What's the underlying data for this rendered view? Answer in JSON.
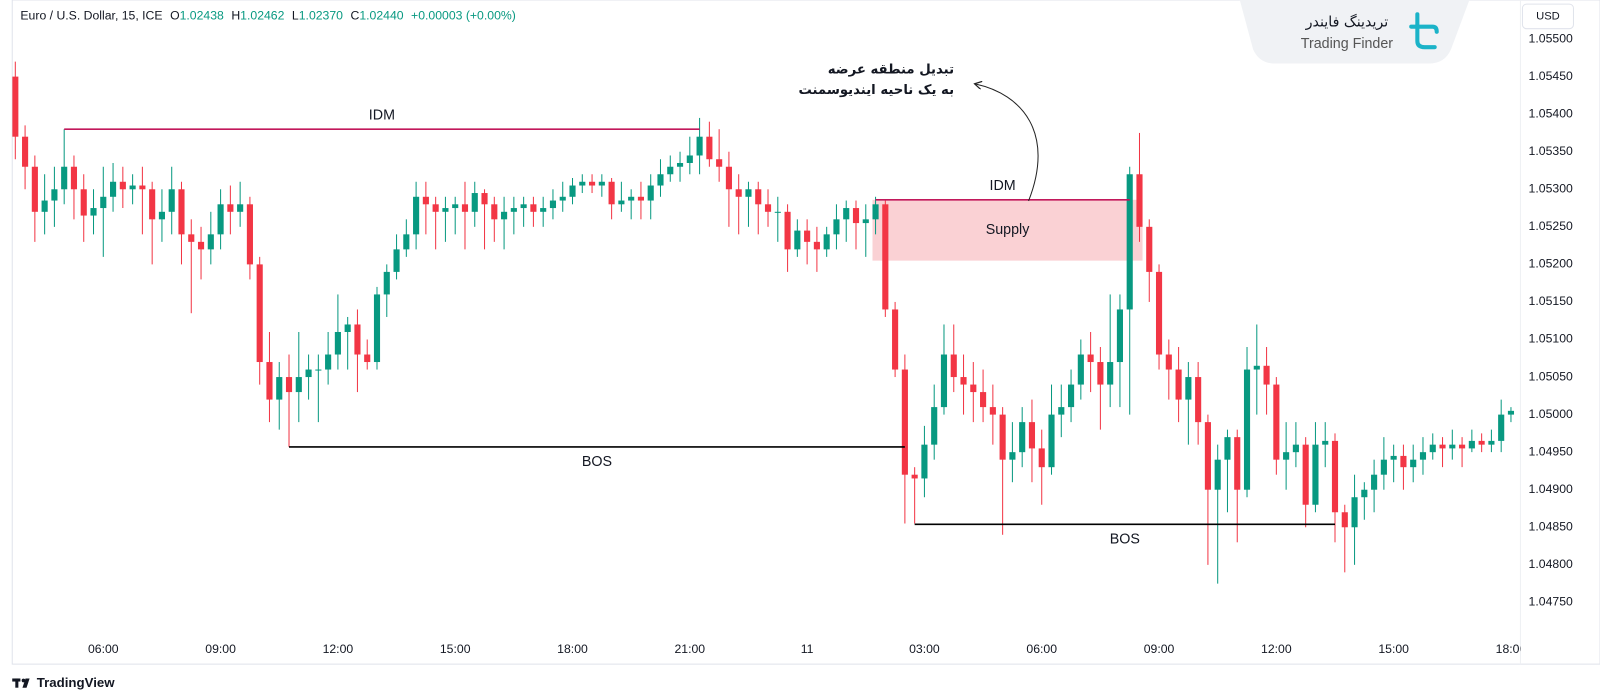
{
  "header": {
    "symbol": "Euro / U.S. Dollar, 15, ICE",
    "ohlc": [
      {
        "label": "O",
        "value": "1.02438"
      },
      {
        "label": "H",
        "value": "1.02462"
      },
      {
        "label": "L",
        "value": "1.02370"
      },
      {
        "label": "C",
        "value": "1.02440"
      }
    ],
    "change": "+0.00003 (+0.00%)",
    "currency": "USD"
  },
  "brand": {
    "name_fa": "تریدینگ فایندر",
    "name_en": "Trading Finder",
    "platform": "TradingView"
  },
  "chart_data": {
    "type": "candlestick",
    "categories": [
      null,
      null,
      null,
      null,
      null,
      null,
      null,
      null,
      null,
      "06:00",
      null,
      null,
      null,
      null,
      null,
      null,
      null,
      null,
      null,
      null,
      null,
      "09:00",
      null,
      null,
      null,
      null,
      null,
      null,
      null,
      null,
      null,
      null,
      null,
      "12:00",
      null,
      null,
      null,
      null,
      null,
      null,
      null,
      null,
      null,
      null,
      null,
      "15:00",
      null,
      null,
      null,
      null,
      null,
      null,
      null,
      null,
      null,
      null,
      null,
      "18:00",
      null,
      null,
      null,
      null,
      null,
      null,
      null,
      null,
      null,
      null,
      null,
      "21:00",
      null,
      null,
      null,
      null,
      null,
      null,
      null,
      null,
      null,
      null,
      null,
      "11",
      null,
      null,
      null,
      null,
      null,
      null,
      null,
      null,
      null,
      null,
      null,
      "03:00",
      null,
      null,
      null,
      null,
      null,
      null,
      null,
      null,
      null,
      null,
      null,
      "06:00",
      null,
      null,
      null,
      null,
      null,
      null,
      null,
      null,
      null,
      null,
      null,
      "09:00",
      null,
      null,
      null,
      null,
      null,
      null,
      null,
      null,
      null,
      null,
      null,
      "12:00",
      null,
      null,
      null,
      null,
      null,
      null,
      null,
      null,
      null,
      null,
      null,
      "15:00",
      null,
      null,
      null,
      null,
      null,
      null,
      null,
      null,
      null,
      null,
      null,
      "18:00"
    ],
    "open": [
      1.0545,
      1.0537,
      1.0533,
      1.0527,
      1.05285,
      1.053,
      1.0533,
      1.053,
      1.05265,
      1.05275,
      1.0529,
      1.0531,
      1.053,
      1.05305,
      1.053,
      1.0526,
      1.0527,
      1.053,
      1.0524,
      1.0523,
      1.0522,
      1.0524,
      1.0528,
      1.0527,
      1.0528,
      1.052,
      1.0507,
      1.0502,
      1.0505,
      1.0503,
      1.0505,
      1.0506,
      1.0506,
      1.0508,
      1.0511,
      1.0512,
      1.0508,
      1.0507,
      1.0516,
      1.0519,
      1.0522,
      1.0524,
      1.0529,
      1.0528,
      1.0527,
      1.05275,
      1.0528,
      1.0527,
      1.05295,
      1.0528,
      1.0526,
      1.0527,
      1.05275,
      1.0528,
      1.0527,
      1.05275,
      1.05285,
      1.0529,
      1.05305,
      1.0531,
      1.05305,
      1.0531,
      1.0528,
      1.05285,
      1.0529,
      1.05285,
      1.05305,
      1.0532,
      1.0533,
      1.05335,
      1.05345,
      1.0537,
      1.0534,
      1.0533,
      1.053,
      1.0529,
      1.053,
      1.0528,
      1.0527,
      1.0527,
      1.0522,
      1.05245,
      1.0523,
      1.0522,
      1.0524,
      1.0526,
      1.05275,
      1.05255,
      1.0526,
      1.0528,
      1.0514,
      1.0506,
      1.0492,
      1.04915,
      1.0496,
      1.0501,
      1.0508,
      1.0505,
      1.0504,
      1.0503,
      1.0501,
      1.05,
      1.0494,
      1.0495,
      1.0499,
      1.04955,
      1.0493,
      1.05,
      1.0501,
      1.0504,
      1.0508,
      1.0507,
      1.0504,
      1.0507,
      1.0514,
      1.0532,
      1.0525,
      1.0519,
      1.0508,
      1.0506,
      1.0502,
      1.0505,
      1.0499,
      1.049,
      1.0494,
      1.0497,
      1.049,
      1.0506,
      1.05065,
      1.0504,
      1.0494,
      1.0495,
      1.0496,
      1.0488,
      1.0496,
      1.04965,
      1.0487,
      1.0485,
      1.0489,
      1.049,
      1.0492,
      1.0494,
      1.04945,
      1.0493,
      1.0494,
      1.0495,
      1.0496,
      1.04955,
      1.0496,
      1.04955,
      1.04965,
      1.0496,
      1.04965,
      1.05
    ],
    "high": [
      1.0547,
      1.05385,
      1.05345,
      1.0532,
      1.0533,
      1.0538,
      1.05345,
      1.0532,
      1.053,
      1.0533,
      1.05335,
      1.0533,
      1.0532,
      1.0533,
      1.0531,
      1.053,
      1.0533,
      1.0531,
      1.0526,
      1.0525,
      1.0527,
      1.053,
      1.05305,
      1.0531,
      1.0529,
      1.0521,
      1.0511,
      1.0507,
      1.0508,
      1.0511,
      1.0508,
      1.0508,
      1.0511,
      1.0516,
      1.0513,
      1.0514,
      1.051,
      1.0517,
      1.052,
      1.0524,
      1.0526,
      1.0531,
      1.0531,
      1.0529,
      1.0529,
      1.0529,
      1.0531,
      1.0531,
      1.053,
      1.0529,
      1.0529,
      1.0529,
      1.0529,
      1.0529,
      1.0529,
      1.053,
      1.0531,
      1.05315,
      1.0532,
      1.0532,
      1.0532,
      1.05315,
      1.0531,
      1.053,
      1.0531,
      1.0532,
      1.0534,
      1.05345,
      1.0535,
      1.0537,
      1.05395,
      1.0539,
      1.0538,
      1.0535,
      1.0532,
      1.0531,
      1.0531,
      1.053,
      1.0529,
      1.0528,
      1.0526,
      1.0526,
      1.0525,
      1.0525,
      1.0528,
      1.05285,
      1.05285,
      1.0528,
      1.0529,
      1.05285,
      1.0515,
      1.0508,
      1.0493,
      1.04985,
      1.0504,
      1.0512,
      1.0512,
      1.0508,
      1.0507,
      1.0506,
      1.0504,
      1.0501,
      1.0499,
      1.0501,
      1.0502,
      1.0498,
      1.0504,
      1.0504,
      1.0506,
      1.051,
      1.0511,
      1.0509,
      1.0516,
      1.0516,
      1.0533,
      1.05375,
      1.0526,
      1.052,
      1.051,
      1.0509,
      1.0507,
      1.0507,
      1.05,
      1.0496,
      1.0498,
      1.0498,
      1.0509,
      1.0512,
      1.0509,
      1.0505,
      1.0499,
      1.0499,
      1.0497,
      1.0499,
      1.0499,
      1.04975,
      1.0488,
      1.0492,
      1.0491,
      1.0494,
      1.0497,
      1.0496,
      1.0496,
      1.0496,
      1.0497,
      1.04975,
      1.0497,
      1.0498,
      1.0497,
      1.0498,
      1.04975,
      1.0498,
      1.0502,
      1.0501
    ],
    "low": [
      1.0534,
      1.053,
      1.0523,
      1.0524,
      1.0525,
      1.0528,
      1.0526,
      1.0523,
      1.0524,
      1.0521,
      1.0527,
      1.05275,
      1.0528,
      1.0524,
      1.052,
      1.0523,
      1.0524,
      1.052,
      1.05135,
      1.0518,
      1.052,
      1.0522,
      1.0524,
      1.0525,
      1.0518,
      1.0504,
      1.0499,
      1.0498,
      1.04957,
      1.0499,
      1.0502,
      1.0499,
      1.0504,
      1.0506,
      1.0506,
      1.0503,
      1.0506,
      1.0506,
      1.0513,
      1.0518,
      1.0521,
      1.0522,
      1.0524,
      1.0522,
      1.0523,
      1.0524,
      1.0522,
      1.0525,
      1.0522,
      1.0523,
      1.0522,
      1.0524,
      1.0525,
      1.0525,
      1.0525,
      1.0526,
      1.0527,
      1.0528,
      1.05295,
      1.05295,
      1.0529,
      1.0526,
      1.0527,
      1.0526,
      1.0526,
      1.0526,
      1.0529,
      1.0531,
      1.0531,
      1.0532,
      1.0532,
      1.0533,
      1.0531,
      1.0525,
      1.0524,
      1.0525,
      1.0524,
      1.0525,
      1.0523,
      1.0519,
      1.0521,
      1.052,
      1.0519,
      1.0521,
      1.0522,
      1.0523,
      1.0522,
      1.0521,
      1.0524,
      1.0513,
      1.0505,
      1.04855,
      1.04855,
      1.0489,
      1.0494,
      1.05,
      1.0503,
      1.05,
      1.0499,
      1.0499,
      1.0496,
      1.0484,
      1.0491,
      1.0493,
      1.0491,
      1.0488,
      1.0492,
      1.0497,
      1.0499,
      1.0502,
      1.0503,
      1.0498,
      1.0501,
      1.0501,
      1.05,
      1.0523,
      1.0515,
      1.0506,
      1.0502,
      1.0499,
      1.0496,
      1.0496,
      1.048,
      1.04775,
      1.0487,
      1.0483,
      1.0489,
      1.05,
      1.05,
      1.0492,
      1.049,
      1.0493,
      1.0485,
      1.0487,
      1.0493,
      1.0483,
      1.0479,
      1.048,
      1.0486,
      1.0487,
      1.049,
      1.0491,
      1.049,
      1.0491,
      1.0492,
      1.0494,
      1.0493,
      1.0494,
      1.0493,
      1.0495,
      1.0495,
      1.0495,
      1.0495,
      1.0499
    ],
    "close": [
      1.0537,
      1.0533,
      1.0527,
      1.05285,
      1.053,
      1.0533,
      1.053,
      1.05265,
      1.05275,
      1.0529,
      1.0531,
      1.053,
      1.05305,
      1.053,
      1.0526,
      1.0527,
      1.053,
      1.0524,
      1.0523,
      1.0522,
      1.0524,
      1.0528,
      1.0527,
      1.0528,
      1.052,
      1.0507,
      1.0502,
      1.0505,
      1.0503,
      1.0505,
      1.0506,
      1.0506,
      1.0508,
      1.0511,
      1.0512,
      1.0508,
      1.0507,
      1.0516,
      1.0519,
      1.0522,
      1.0524,
      1.0529,
      1.0528,
      1.0527,
      1.05275,
      1.0528,
      1.0527,
      1.05295,
      1.0528,
      1.0526,
      1.0527,
      1.05275,
      1.0528,
      1.0527,
      1.05275,
      1.05285,
      1.0529,
      1.05305,
      1.0531,
      1.05305,
      1.0531,
      1.0528,
      1.05285,
      1.0529,
      1.05285,
      1.05305,
      1.0532,
      1.0533,
      1.05335,
      1.05345,
      1.0537,
      1.0534,
      1.0533,
      1.053,
      1.0529,
      1.053,
      1.0528,
      1.0527,
      1.0527,
      1.0522,
      1.05245,
      1.0523,
      1.0522,
      1.0524,
      1.0526,
      1.05275,
      1.05255,
      1.0526,
      1.0528,
      1.0514,
      1.0506,
      1.0492,
      1.04915,
      1.0496,
      1.0501,
      1.0508,
      1.0505,
      1.0504,
      1.0503,
      1.0501,
      1.05,
      1.0494,
      1.0495,
      1.0499,
      1.04955,
      1.0493,
      1.05,
      1.0501,
      1.0504,
      1.0508,
      1.0507,
      1.0504,
      1.0507,
      1.0514,
      1.0532,
      1.0525,
      1.0519,
      1.0508,
      1.0506,
      1.0502,
      1.0505,
      1.0499,
      1.049,
      1.0494,
      1.0497,
      1.049,
      1.0506,
      1.05065,
      1.0504,
      1.0494,
      1.0495,
      1.0496,
      1.0488,
      1.0496,
      1.04965,
      1.0487,
      1.0485,
      1.0489,
      1.049,
      1.0492,
      1.0494,
      1.04945,
      1.0493,
      1.0494,
      1.0495,
      1.0496,
      1.04955,
      1.0496,
      1.04955,
      1.04965,
      1.0496,
      1.04965,
      1.05,
      1.05005
    ],
    "up_color": "#089981",
    "down_color": "#f23645",
    "ylim": [
      1.04706,
      1.05552
    ],
    "yticks": [
      {
        "value": 1.0475,
        "label": "1.04750"
      },
      {
        "value": 1.048,
        "label": "1.04800"
      },
      {
        "value": 1.0485,
        "label": "1.04850"
      },
      {
        "value": 1.049,
        "label": "1.04900"
      },
      {
        "value": 1.0495,
        "label": "1.04950"
      },
      {
        "value": 1.05,
        "label": "1.05000"
      },
      {
        "value": 1.0505,
        "label": "1.05050"
      },
      {
        "value": 1.051,
        "label": "1.05100"
      },
      {
        "value": 1.0515,
        "label": "1.05150"
      },
      {
        "value": 1.052,
        "label": "1.05200"
      },
      {
        "value": 1.0525,
        "label": "1.05250"
      },
      {
        "value": 1.053,
        "label": "1.05300"
      },
      {
        "value": 1.0535,
        "label": "1.05350"
      },
      {
        "value": 1.054,
        "label": "1.05400"
      },
      {
        "value": 1.0545,
        "label": "1.05450"
      },
      {
        "value": 1.055,
        "label": "1.05500"
      }
    ],
    "grid": false,
    "levels": [
      {
        "label": "IDM",
        "price": 1.0538,
        "start": 5,
        "end": 70,
        "color": "#c2185b"
      },
      {
        "label": "BOS",
        "price": 1.04957,
        "start": 28,
        "end": 91,
        "color": "#000000"
      },
      {
        "label": "IDM",
        "price": 1.05286,
        "start": 88,
        "end": 114,
        "color": "#c2185b"
      },
      {
        "label": "BOS",
        "price": 1.04854,
        "start": 92,
        "end": 135,
        "color": "#000000"
      }
    ],
    "zone": {
      "label": "Supply",
      "top": 1.05286,
      "bottom": 1.05205,
      "start": 88,
      "end": 115,
      "color": "#f9c9cd"
    },
    "annotation": {
      "lines": [
        "تبدیل منطقه عرضه",
        "به یک ناحیه ایندیوسمنت"
      ]
    }
  }
}
